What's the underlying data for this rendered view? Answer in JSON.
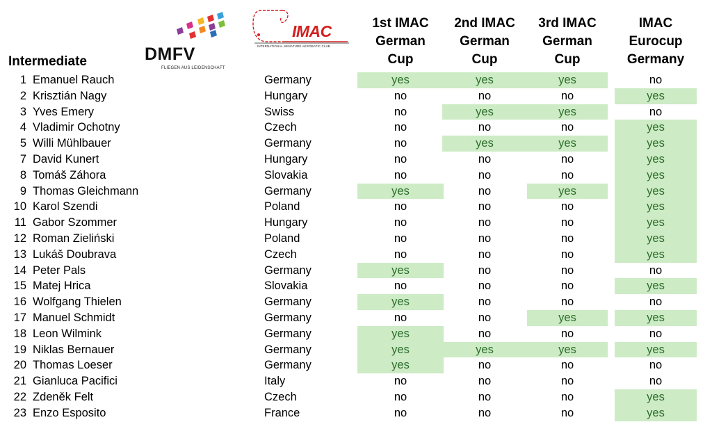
{
  "class_label": "Intermediate",
  "logos": {
    "dmfv": {
      "text": "DMFV",
      "tagline": "FLIEGEN AUS LEIDENSCHAFT"
    },
    "imac": {
      "text": "IMAC",
      "tagline": "INTERNATIONAL MINIATURE AEROBATIC CLUB"
    }
  },
  "columns": [
    {
      "lines": [
        "1st IMAC",
        "German",
        "Cup"
      ]
    },
    {
      "lines": [
        "2nd IMAC",
        "German",
        "Cup"
      ]
    },
    {
      "lines": [
        "3rd IMAC",
        "German",
        "Cup"
      ]
    },
    {
      "lines": [
        "IMAC",
        "Eurocup",
        "Germany"
      ]
    }
  ],
  "colors": {
    "yes_bg": "#cdebc5",
    "yes_text": "#2c6e2c"
  },
  "rows": [
    {
      "num": "1",
      "name": "Emanuel Rauch",
      "country": "Germany",
      "v": [
        "yes",
        "yes",
        "yes",
        "no"
      ]
    },
    {
      "num": "2",
      "name": "Krisztián Nagy",
      "country": "Hungary",
      "v": [
        "no",
        "no",
        "no",
        "yes"
      ]
    },
    {
      "num": "3",
      "name": "Yves Emery",
      "country": "Swiss",
      "v": [
        "no",
        "yes",
        "yes",
        "no"
      ]
    },
    {
      "num": "4",
      "name": "Vladimir Ochotny",
      "country": "Czech",
      "v": [
        "no",
        "no",
        "no",
        "yes"
      ]
    },
    {
      "num": "5",
      "name": "Willi Mühlbauer",
      "country": "Germany",
      "v": [
        "no",
        "yes",
        "yes",
        "yes"
      ]
    },
    {
      "num": "7",
      "name": "David Kunert",
      "country": "Hungary",
      "v": [
        "no",
        "no",
        "no",
        "yes"
      ]
    },
    {
      "num": "8",
      "name": "Tomáš Záhora",
      "country": "Slovakia",
      "v": [
        "no",
        "no",
        "no",
        "yes"
      ]
    },
    {
      "num": "9",
      "name": "Thomas Gleichmann",
      "country": "Germany",
      "v": [
        "yes",
        "no",
        "yes",
        "yes"
      ]
    },
    {
      "num": "10",
      "name": "Karol Szendi",
      "country": "Poland",
      "v": [
        "no",
        "no",
        "no",
        "yes"
      ]
    },
    {
      "num": "11",
      "name": "Gabor Szommer",
      "country": "Hungary",
      "v": [
        "no",
        "no",
        "no",
        "yes"
      ]
    },
    {
      "num": "12",
      "name": "Roman Zieliński",
      "country": "Poland",
      "v": [
        "no",
        "no",
        "no",
        "yes"
      ]
    },
    {
      "num": "13",
      "name": "Lukáš Doubrava",
      "country": "Czech",
      "v": [
        "no",
        "no",
        "no",
        "yes"
      ]
    },
    {
      "num": "14",
      "name": "Peter Pals",
      "country": "Germany",
      "v": [
        "yes",
        "no",
        "no",
        "no"
      ]
    },
    {
      "num": "15",
      "name": "Matej Hrica",
      "country": "Slovakia",
      "v": [
        "no",
        "no",
        "no",
        "yes"
      ]
    },
    {
      "num": "16",
      "name": "Wolfgang Thielen",
      "country": "Germany",
      "v": [
        "yes",
        "no",
        "no",
        "no"
      ]
    },
    {
      "num": "17",
      "name": "Manuel Schmidt",
      "country": "Germany",
      "v": [
        "no",
        "no",
        "yes",
        "yes"
      ]
    },
    {
      "num": "18",
      "name": "Leon Wilmink",
      "country": "Germany",
      "v": [
        "yes",
        "no",
        "no",
        "no"
      ]
    },
    {
      "num": "19",
      "name": "Niklas Bernauer",
      "country": "Germany",
      "v": [
        "yes",
        "yes",
        "yes",
        "yes"
      ]
    },
    {
      "num": "20",
      "name": "Thomas Loeser",
      "country": "Germany",
      "v": [
        "yes",
        "no",
        "no",
        "no"
      ]
    },
    {
      "num": "21",
      "name": "Gianluca Pacifici",
      "country": "Italy",
      "v": [
        "no",
        "no",
        "no",
        "no"
      ]
    },
    {
      "num": "22",
      "name": "Zdeněk Felt",
      "country": "Czech",
      "v": [
        "no",
        "no",
        "no",
        "yes"
      ]
    },
    {
      "num": "23",
      "name": "Enzo Esposito",
      "country": "France",
      "v": [
        "no",
        "no",
        "no",
        "yes"
      ]
    }
  ]
}
